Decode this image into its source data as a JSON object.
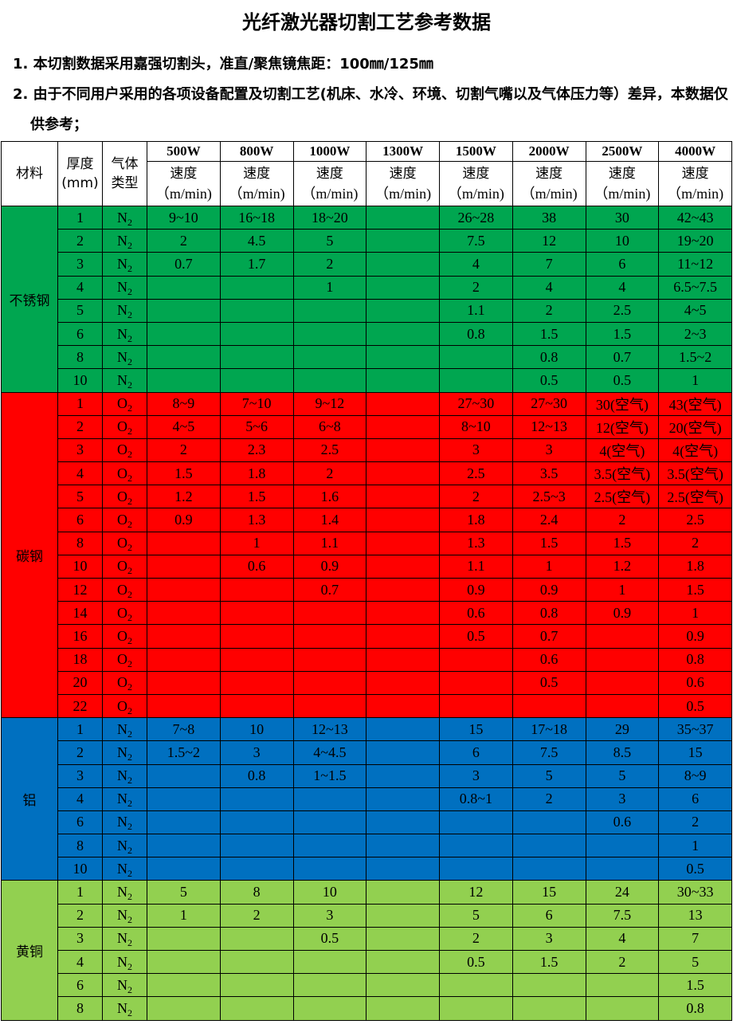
{
  "title": "光纤激光器切割工艺参考数据",
  "notes": [
    "1. 本切割数据采用嘉强切割头，准直/聚焦镜焦距：100㎜/125㎜",
    "2. 由于不同用户采用的各项设备配置及切割工艺(机床、水冷、环境、切割气嘴以及气体压力等）差异，本数据仅供参考；"
  ],
  "header": {
    "material": "材料",
    "thickness": "厚度\n(mm)",
    "gas": "气体\n类型",
    "powers": [
      "500W",
      "800W",
      "1000W",
      "1300W",
      "1500W",
      "2000W",
      "2500W",
      "4000W"
    ],
    "speed": "速度",
    "unit": "（m/min)"
  },
  "sections": [
    {
      "material": "不锈钢",
      "color": "#00a650",
      "rows": [
        [
          "1",
          "N2",
          [
            "9~10",
            "16~18",
            "18~20",
            "",
            "26~28",
            "38",
            "30",
            "42~43"
          ]
        ],
        [
          "2",
          "N2",
          [
            "2",
            "4.5",
            "5",
            "",
            "7.5",
            "12",
            "10",
            "19~20"
          ]
        ],
        [
          "3",
          "N2",
          [
            "0.7",
            "1.7",
            "2",
            "",
            "4",
            "7",
            "6",
            "11~12"
          ]
        ],
        [
          "4",
          "N2",
          [
            "",
            "",
            "1",
            "",
            "2",
            "4",
            "4",
            "6.5~7.5"
          ]
        ],
        [
          "5",
          "N2",
          [
            "",
            "",
            "",
            "",
            "1.1",
            "2",
            "2.5",
            "4~5"
          ]
        ],
        [
          "6",
          "N2",
          [
            "",
            "",
            "",
            "",
            "0.8",
            "1.5",
            "1.5",
            "2~3"
          ]
        ],
        [
          "8",
          "N2",
          [
            "",
            "",
            "",
            "",
            "",
            "0.8",
            "0.7",
            "1.5~2"
          ]
        ],
        [
          "10",
          "N2",
          [
            "",
            "",
            "",
            "",
            "",
            "0.5",
            "0.5",
            "1"
          ]
        ]
      ]
    },
    {
      "material": "碳钢",
      "color": "#ff0000",
      "rows": [
        [
          "1",
          "O2",
          [
            "8~9",
            "7~10",
            "9~12",
            "",
            "27~30",
            "27~30",
            "30(空气)",
            "43(空气)"
          ]
        ],
        [
          "2",
          "O2",
          [
            "4~5",
            "5~6",
            "6~8",
            "",
            "8~10",
            "12~13",
            "12(空气)",
            "20(空气)"
          ]
        ],
        [
          "3",
          "O2",
          [
            "2",
            "2.3",
            "2.5",
            "",
            "3",
            "3",
            "4(空气)",
            "4(空气)"
          ]
        ],
        [
          "4",
          "O2",
          [
            "1.5",
            "1.8",
            "2",
            "",
            "2.5",
            "3.5",
            "3.5(空气)",
            "3.5(空气)"
          ]
        ],
        [
          "5",
          "O2",
          [
            "1.2",
            "1.5",
            "1.6",
            "",
            "2",
            "2.5~3",
            "2.5(空气)",
            "2.5(空气)"
          ]
        ],
        [
          "6",
          "O2",
          [
            "0.9",
            "1.3",
            "1.4",
            "",
            "1.8",
            "2.4",
            "2",
            "2.5"
          ]
        ],
        [
          "8",
          "O2",
          [
            "",
            "1",
            "1.1",
            "",
            "1.3",
            "1.5",
            "1.5",
            "2"
          ]
        ],
        [
          "10",
          "O2",
          [
            "",
            "0.6",
            "0.9",
            "",
            "1.1",
            "1",
            "1.2",
            "1.8"
          ]
        ],
        [
          "12",
          "O2",
          [
            "",
            "",
            "0.7",
            "",
            "0.9",
            "0.9",
            "1",
            "1.5"
          ]
        ],
        [
          "14",
          "O2",
          [
            "",
            "",
            "",
            "",
            "0.6",
            "0.8",
            "0.9",
            "1"
          ]
        ],
        [
          "16",
          "O2",
          [
            "",
            "",
            "",
            "",
            "0.5",
            "0.7",
            "",
            "0.9"
          ]
        ],
        [
          "18",
          "O2",
          [
            "",
            "",
            "",
            "",
            "",
            "0.6",
            "",
            "0.8"
          ]
        ],
        [
          "20",
          "O2",
          [
            "",
            "",
            "",
            "",
            "",
            "0.5",
            "",
            "0.6"
          ]
        ],
        [
          "22",
          "O2",
          [
            "",
            "",
            "",
            "",
            "",
            "",
            "",
            "0.5"
          ]
        ]
      ]
    },
    {
      "material": "铝",
      "color": "#0070c0",
      "rows": [
        [
          "1",
          "N2",
          [
            "7~8",
            "10",
            "12~13",
            "",
            "15",
            "17~18",
            "29",
            "35~37"
          ]
        ],
        [
          "2",
          "N2",
          [
            "1.5~2",
            "3",
            "4~4.5",
            "",
            "6",
            "7.5",
            "8.5",
            "15"
          ]
        ],
        [
          "3",
          "N2",
          [
            "",
            "0.8",
            "1~1.5",
            "",
            "3",
            "5",
            "5",
            "8~9"
          ]
        ],
        [
          "4",
          "N2",
          [
            "",
            "",
            "",
            "",
            "0.8~1",
            "2",
            "3",
            "6"
          ]
        ],
        [
          "6",
          "N2",
          [
            "",
            "",
            "",
            "",
            "",
            "",
            "0.6",
            "2"
          ]
        ],
        [
          "8",
          "N2",
          [
            "",
            "",
            "",
            "",
            "",
            "",
            "",
            "1"
          ]
        ],
        [
          "10",
          "N2",
          [
            "",
            "",
            "",
            "",
            "",
            "",
            "",
            "0.5"
          ]
        ]
      ]
    },
    {
      "material": "黄铜",
      "color": "#92d050",
      "rows": [
        [
          "1",
          "N2",
          [
            "5",
            "8",
            "10",
            "",
            "12",
            "15",
            "24",
            "30~33"
          ]
        ],
        [
          "2",
          "N2",
          [
            "1",
            "2",
            "3",
            "",
            "5",
            "6",
            "7.5",
            "13"
          ]
        ],
        [
          "3",
          "N2",
          [
            "",
            "",
            "0.5",
            "",
            "2",
            "3",
            "4",
            "7"
          ]
        ],
        [
          "4",
          "N2",
          [
            "",
            "",
            "",
            "",
            "0.5",
            "1.5",
            "2",
            "5"
          ]
        ],
        [
          "6",
          "N2",
          [
            "",
            "",
            "",
            "",
            "",
            "",
            "",
            "1.5"
          ]
        ],
        [
          "8",
          "N2",
          [
            "",
            "",
            "",
            "",
            "",
            "",
            "",
            "0.8"
          ]
        ]
      ]
    }
  ]
}
